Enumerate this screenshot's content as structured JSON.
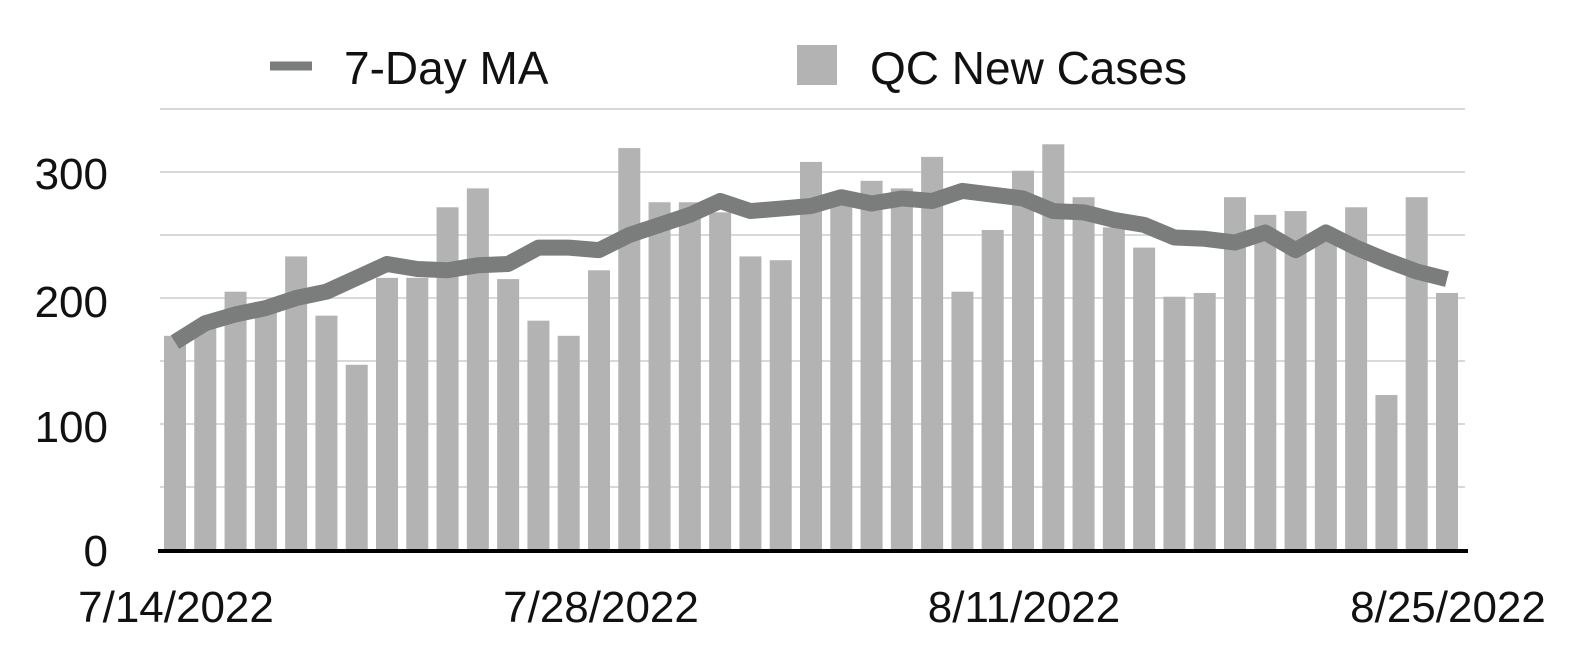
{
  "chart_data": {
    "type": "bar",
    "title": "",
    "xlabel": "",
    "ylabel": "",
    "ylim": [
      0,
      350
    ],
    "yticks": [
      "0",
      "100",
      "200",
      "300"
    ],
    "grid": true,
    "legend_position": "top",
    "x_start": "7/14/2022",
    "x_end": "8/25/2022",
    "xtick_labels": [
      "7/14/2022",
      "7/28/2022",
      "8/11/2022",
      "8/25/2022"
    ],
    "series": [
      {
        "name": "QC New Cases",
        "type": "bar",
        "color": "#b3b3b3",
        "values": [
          170,
          182,
          205,
          197,
          233,
          186,
          147,
          216,
          216,
          272,
          287,
          215,
          182,
          170,
          222,
          319,
          276,
          276,
          268,
          233,
          230,
          308,
          275,
          293,
          287,
          312,
          205,
          254,
          301,
          322,
          280,
          256,
          240,
          201,
          204,
          280,
          266,
          269,
          248,
          272,
          123,
          280,
          204
        ]
      },
      {
        "name": "7-Day MA",
        "type": "line",
        "color": "#7a7d7b",
        "values": [
          165,
          180,
          187,
          192,
          200,
          205,
          216,
          227,
          223,
          222,
          226,
          227,
          240,
          240,
          238,
          250,
          258,
          266,
          277,
          269,
          271,
          273,
          280,
          275,
          279,
          277,
          285,
          282,
          279,
          269,
          268,
          262,
          258,
          248,
          247,
          244,
          252,
          238,
          252,
          240,
          230,
          221,
          215
        ]
      }
    ]
  }
}
